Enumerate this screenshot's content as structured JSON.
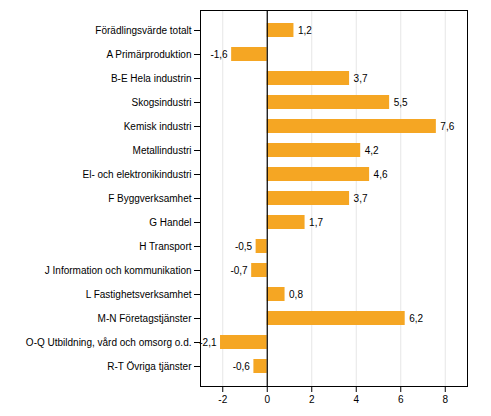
{
  "chart_data": {
    "type": "bar",
    "orientation": "horizontal",
    "categories": [
      "Förädlingsvärde totalt",
      "A Primärproduktion",
      "B-E Hela industrin",
      "Skogsindustri",
      "Kemisk industri",
      "Metallindustri",
      "El- och elektronikindustri",
      "F Byggverksamhet",
      "G Handel",
      "H Transport",
      "J Information och kommunikation",
      "L Fastighetsverksamhet",
      "M-N Företagstjänster",
      "O-Q Utbildning, vård och omsorg o.d.",
      "R-T Övriga tjänster"
    ],
    "values": [
      1.2,
      -1.6,
      3.7,
      5.5,
      7.6,
      4.2,
      4.6,
      3.7,
      1.7,
      -0.5,
      -0.7,
      0.8,
      6.2,
      -2.1,
      -0.6
    ],
    "value_labels": [
      "1,2",
      "-1,6",
      "3,7",
      "5,5",
      "7,6",
      "4,2",
      "4,6",
      "3,7",
      "1,7",
      "-0,5",
      "-0,7",
      "0,8",
      "6,2",
      "-2,1",
      "-0,6"
    ],
    "color": "#f5a623",
    "xlim": [
      -3.0,
      9.0
    ],
    "xticks": [
      -2,
      0,
      2,
      4,
      6,
      8
    ],
    "grid": true,
    "data_labels": true
  }
}
